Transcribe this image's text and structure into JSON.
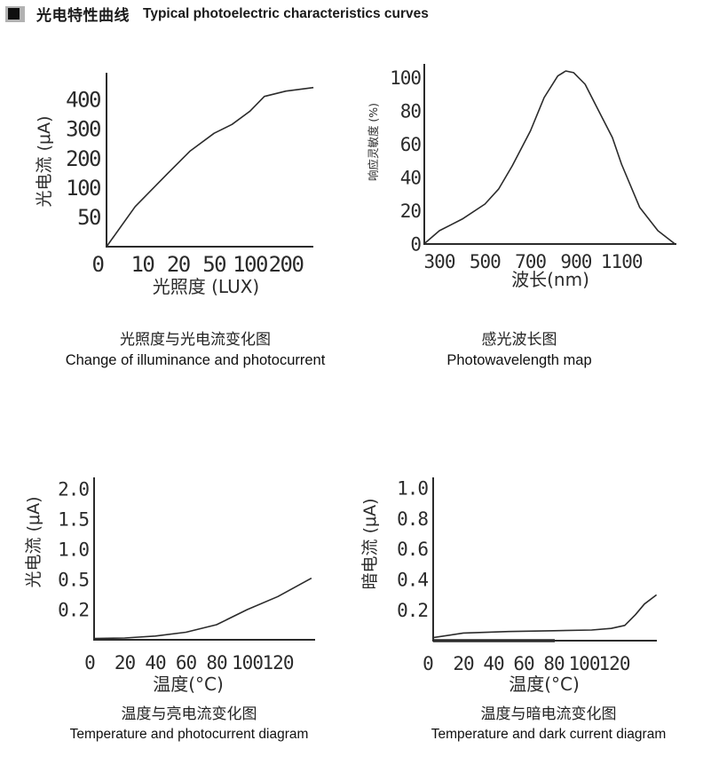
{
  "header": {
    "bullet_icon": "black-square",
    "title_zh": "光电特性曲线",
    "title_en": "Typical photoelectric characteristics curves"
  },
  "colors": {
    "ink": "#2b2b2b",
    "paper": "#ffffff",
    "bullet_bg": "#b2b2b2",
    "bullet": "#101010"
  },
  "chart_data": [
    {
      "type": "line",
      "title_zh": "光照度与光电流变化图",
      "title_en": "Change of illuminance and photocurrent",
      "xlabel": "光照度 (LUX)",
      "ylabel": "光电流 (μA)",
      "x_ticks": {
        "values": [
          0,
          10,
          20,
          50,
          100,
          200
        ],
        "labels": [
          "0",
          "10",
          "20",
          "50",
          "100",
          "200"
        ],
        "spacing": "uniform-per-tick"
      },
      "y_ticks": {
        "values": [
          0,
          50,
          100,
          200,
          300,
          400
        ],
        "labels": [
          "",
          "50",
          "100",
          "200",
          "300",
          "400"
        ],
        "spacing": "uniform-per-tick"
      },
      "points": [
        [
          0,
          0
        ],
        [
          8,
          68
        ],
        [
          17,
          148
        ],
        [
          30,
          225
        ],
        [
          50,
          285
        ],
        [
          75,
          315
        ],
        [
          100,
          360
        ],
        [
          140,
          410
        ],
        [
          200,
          428
        ],
        [
          277,
          440
        ]
      ],
      "grid": false,
      "legend": null
    },
    {
      "type": "line",
      "title_zh": "感光波长图",
      "title_en": "Photowavelength map",
      "xlabel": "波长(nm)",
      "ylabel": "响应灵敏度 (%)",
      "x_ticks": {
        "values": [
          300,
          500,
          700,
          900,
          1100
        ],
        "labels": [
          "300",
          "500",
          "700",
          "900",
          "1100"
        ],
        "spacing": "linear"
      },
      "y_ticks": {
        "values": [
          0,
          20,
          40,
          60,
          80,
          100
        ],
        "labels": [
          "0",
          "20",
          "40",
          "60",
          "80",
          "100"
        ],
        "spacing": "linear"
      },
      "points": [
        [
          232,
          0
        ],
        [
          300,
          8
        ],
        [
          400,
          15
        ],
        [
          500,
          24
        ],
        [
          560,
          33
        ],
        [
          620,
          47
        ],
        [
          700,
          68
        ],
        [
          760,
          88
        ],
        [
          820,
          101
        ],
        [
          855,
          104
        ],
        [
          890,
          103
        ],
        [
          940,
          96
        ],
        [
          1000,
          80
        ],
        [
          1060,
          64
        ],
        [
          1100,
          48
        ],
        [
          1180,
          22
        ],
        [
          1260,
          8
        ],
        [
          1335,
          0
        ]
      ],
      "grid": false,
      "legend": null
    },
    {
      "type": "line",
      "title_zh": "温度与亮电流变化图",
      "title_en": "Temperature and photocurrent diagram",
      "xlabel": "温度(°C)",
      "ylabel": "光电流 (μA)",
      "x_ticks": {
        "values": [
          0,
          20,
          40,
          60,
          80,
          100,
          120
        ],
        "labels": [
          "0",
          "20",
          "40",
          "60",
          "80",
          "100",
          "120"
        ],
        "spacing": "linear"
      },
      "y_ticks": {
        "values": [
          0,
          0.2,
          0.5,
          1.0,
          1.5,
          2.0
        ],
        "labels": [
          "",
          "0.2",
          "0.5",
          "1.0",
          "1.5",
          "2.0"
        ],
        "spacing": "uniform-per-tick"
      },
      "points": [
        [
          0,
          0.008
        ],
        [
          20,
          0.012
        ],
        [
          40,
          0.025
        ],
        [
          60,
          0.05
        ],
        [
          80,
          0.1
        ],
        [
          100,
          0.2
        ],
        [
          120,
          0.33
        ],
        [
          142,
          0.52
        ]
      ],
      "grid": false,
      "legend": null
    },
    {
      "type": "line",
      "title_zh": "温度与暗电流变化图",
      "title_en": "Temperature and dark current diagram",
      "xlabel": "温度(°C)",
      "ylabel": "暗电流 (μA)",
      "x_ticks": {
        "values": [
          0,
          20,
          40,
          60,
          80,
          100,
          120
        ],
        "labels": [
          "0",
          "20",
          "40",
          "60",
          "80",
          "100",
          "120"
        ],
        "spacing": "linear"
      },
      "y_ticks": {
        "values": [
          0,
          0.2,
          0.4,
          0.6,
          0.8,
          1.0
        ],
        "labels": [
          "",
          "0.2",
          "0.4",
          "0.6",
          "0.8",
          "1.0"
        ],
        "spacing": "linear"
      },
      "points": [
        [
          0,
          0.02
        ],
        [
          20,
          0.05
        ],
        [
          50,
          0.06
        ],
        [
          80,
          0.065
        ],
        [
          105,
          0.07
        ],
        [
          118,
          0.08
        ],
        [
          127,
          0.1
        ],
        [
          134,
          0.17
        ],
        [
          140,
          0.24
        ],
        [
          148,
          0.3
        ]
      ],
      "grid": false,
      "legend": null
    }
  ]
}
